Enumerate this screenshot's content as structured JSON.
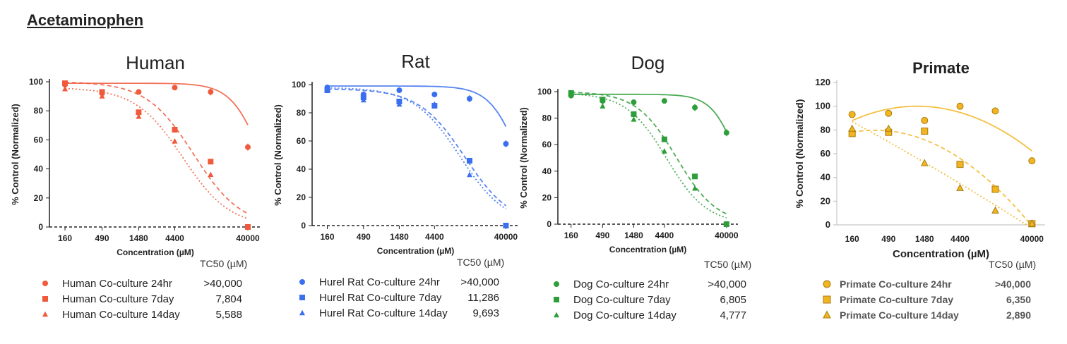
{
  "page_title": "Acetaminophen",
  "chart_data": [
    {
      "type": "scatter",
      "title": "Human",
      "xlabel": "Concentration (µM)",
      "ylabel": "% Control  (Normalized)",
      "x_scale": "log",
      "x_ticks": [
        "160",
        "490",
        "1480",
        "4400",
        "40000"
      ],
      "x_tick_values": [
        160,
        490,
        1480,
        4400,
        40000
      ],
      "xlim": [
        100,
        60000
      ],
      "ylim": [
        0,
        100
      ],
      "y_ticks": [
        0,
        20,
        40,
        60,
        80,
        100
      ],
      "color": "#f05a3c",
      "tc50_header": "TC50 (µM)",
      "series": [
        {
          "name": "Human Co-culture 24hr",
          "marker": "circle",
          "tc50": ">40,000",
          "points": [
            [
              160,
              98
            ],
            [
              490,
              92
            ],
            [
              1480,
              93
            ],
            [
              4400,
              96
            ],
            [
              13000,
              93
            ],
            [
              40000,
              55
            ]
          ]
        },
        {
          "name": "Human Co-culture 7day",
          "marker": "square",
          "tc50": "7,804",
          "points": [
            [
              160,
              99
            ],
            [
              490,
              93
            ],
            [
              1480,
              79
            ],
            [
              4400,
              67
            ],
            [
              13000,
              45
            ],
            [
              40000,
              0
            ]
          ]
        },
        {
          "name": "Human Co-culture 14day",
          "marker": "triangle",
          "tc50": "5,588",
          "points": [
            [
              160,
              95
            ],
            [
              490,
              90
            ],
            [
              1480,
              76
            ],
            [
              4400,
              59
            ],
            [
              13000,
              36
            ],
            [
              40000,
              0
            ]
          ]
        }
      ]
    },
    {
      "type": "scatter",
      "title": "Rat",
      "xlabel": "Concentration (µM)",
      "ylabel": "% Control  (Normalized)",
      "x_scale": "log",
      "x_ticks": [
        "160",
        "490",
        "1480",
        "4400",
        "40000"
      ],
      "x_tick_values": [
        160,
        490,
        1480,
        4400,
        40000
      ],
      "xlim": [
        100,
        60000
      ],
      "ylim": [
        0,
        100
      ],
      "y_ticks": [
        0,
        20,
        40,
        60,
        80,
        100
      ],
      "color": "#3a6ff0",
      "tc50_header": "TC50 (µM)",
      "series": [
        {
          "name": "Hurel Rat Co-culture 24hr",
          "marker": "circle",
          "tc50": ">40,000",
          "points": [
            [
              160,
              98
            ],
            [
              490,
              93
            ],
            [
              1480,
              96
            ],
            [
              4400,
              93
            ],
            [
              13000,
              90
            ],
            [
              40000,
              58
            ]
          ]
        },
        {
          "name": "Hurel Rat Co-culture 7day",
          "marker": "square",
          "tc50": "11,286",
          "points": [
            [
              160,
              96
            ],
            [
              490,
              91
            ],
            [
              1480,
              88
            ],
            [
              4400,
              85
            ],
            [
              13000,
              46
            ],
            [
              40000,
              0
            ]
          ]
        },
        {
          "name": "Hurel Rat Co-culture 14day",
          "marker": "triangle",
          "tc50": "9,693",
          "points": [
            [
              160,
              97
            ],
            [
              490,
              89
            ],
            [
              1480,
              86
            ],
            [
              4400,
              86
            ],
            [
              13000,
              36
            ],
            [
              40000,
              0
            ]
          ]
        }
      ]
    },
    {
      "type": "scatter",
      "title": "Dog",
      "xlabel": "Concentration (µM)",
      "ylabel": "% Control  (Normalized)",
      "x_scale": "log",
      "x_ticks": [
        "160",
        "490",
        "1480",
        "4400",
        "40000"
      ],
      "x_tick_values": [
        160,
        490,
        1480,
        4400,
        40000
      ],
      "xlim": [
        100,
        60000
      ],
      "ylim": [
        0,
        100
      ],
      "y_ticks": [
        0,
        20,
        40,
        60,
        80,
        100
      ],
      "color": "#2e9e3a",
      "tc50_header": "TC50 (µM)",
      "series": [
        {
          "name": "Dog Co-culture 24hr",
          "marker": "circle",
          "tc50": ">40,000",
          "points": [
            [
              160,
              97
            ],
            [
              490,
              93
            ],
            [
              1480,
              92
            ],
            [
              4400,
              93
            ],
            [
              13000,
              88
            ],
            [
              40000,
              69
            ]
          ]
        },
        {
          "name": "Dog Co-culture 7day",
          "marker": "square",
          "tc50": "6,805",
          "points": [
            [
              160,
              99
            ],
            [
              490,
              94
            ],
            [
              1480,
              83
            ],
            [
              4400,
              64
            ],
            [
              13000,
              36
            ],
            [
              40000,
              0
            ]
          ]
        },
        {
          "name": "Dog Co-culture 14day",
          "marker": "triangle",
          "tc50": "4,777",
          "points": [
            [
              160,
              98
            ],
            [
              490,
              89
            ],
            [
              1480,
              79
            ],
            [
              4400,
              55
            ],
            [
              13000,
              27
            ],
            [
              40000,
              0
            ]
          ]
        }
      ]
    },
    {
      "type": "scatter",
      "title": "Primate",
      "xlabel": "Concentration  (µM)",
      "ylabel": "% Control (Normalized)",
      "x_scale": "log",
      "x_ticks": [
        "160",
        "490",
        "1480",
        "4400",
        "40000"
      ],
      "x_tick_values": [
        160,
        490,
        1480,
        4400,
        40000
      ],
      "xlim": [
        100,
        60000
      ],
      "ylim": [
        0,
        120
      ],
      "y_ticks": [
        0,
        20,
        40,
        60,
        80,
        100,
        120
      ],
      "color": "#f2b521",
      "tc50_header": "TC50 (µM)",
      "series": [
        {
          "name": "Primate Co-culture 24hr",
          "marker": "circle",
          "tc50": ">40,000",
          "points": [
            [
              160,
              93
            ],
            [
              490,
              94
            ],
            [
              1480,
              88
            ],
            [
              4400,
              100
            ],
            [
              13000,
              96
            ],
            [
              40000,
              54
            ]
          ]
        },
        {
          "name": "Primate Co-culture 7day",
          "marker": "square",
          "tc50": "6,350",
          "points": [
            [
              160,
              77
            ],
            [
              490,
              78
            ],
            [
              1480,
              79
            ],
            [
              4400,
              51
            ],
            [
              13000,
              30
            ],
            [
              40000,
              1
            ]
          ]
        },
        {
          "name": "Primate Co-culture 14day",
          "marker": "triangle",
          "tc50": "2,890",
          "points": [
            [
              160,
              81
            ],
            [
              490,
              81
            ],
            [
              1480,
              52
            ],
            [
              4400,
              31
            ],
            [
              13000,
              12
            ],
            [
              40000,
              1
            ]
          ]
        }
      ]
    }
  ]
}
